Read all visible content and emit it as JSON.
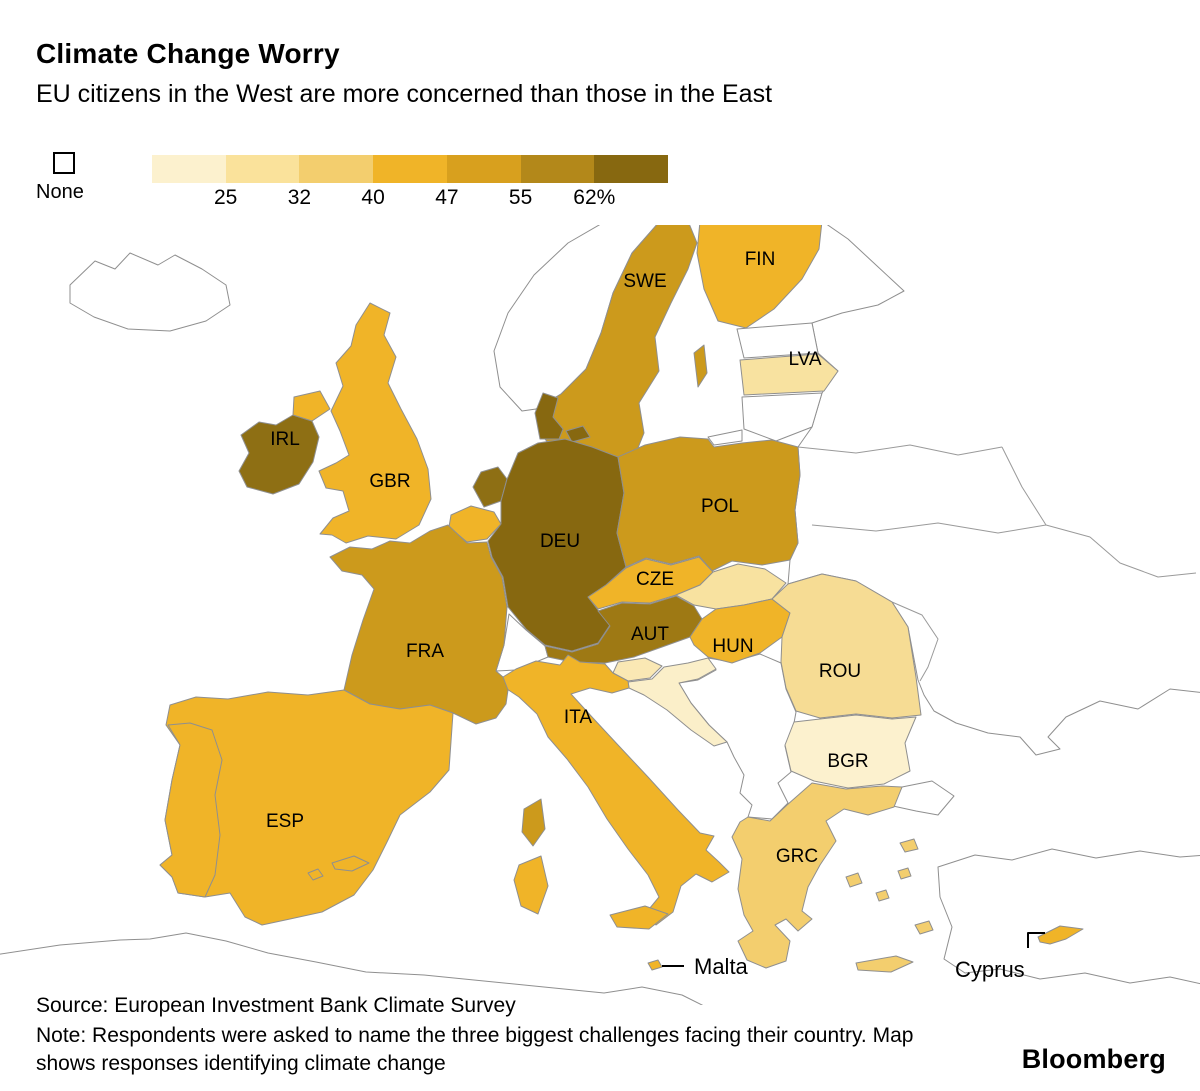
{
  "header": {
    "title": "Climate Change Worry",
    "subtitle": "EU citizens in the West are more concerned than those in the East"
  },
  "legend": {
    "none_label": "None",
    "none_color": "#FFFFFF",
    "ticks": [
      "25",
      "32",
      "40",
      "47",
      "55",
      "62%"
    ],
    "colors": [
      "#FCF1CE",
      "#FAE29B",
      "#F3CE6E",
      "#F0B428",
      "#D8A01E",
      "#B3881A",
      "#876810"
    ]
  },
  "map": {
    "none_color": "#FFFFFF",
    "border_color": "#8F8F8F",
    "countries": {
      "fin": {
        "label": "FIN",
        "color": "#F0B428"
      },
      "swe": {
        "label": "SWE",
        "color": "#CC9A1C"
      },
      "lva": {
        "label": "LVA",
        "color": "#F8E2A0"
      },
      "irl": {
        "label": "IRL",
        "color": "#8E6F14"
      },
      "gbr": {
        "label": "GBR",
        "color": "#F0B428"
      },
      "dnk": {
        "color": "#876810"
      },
      "nld": {
        "color": "#8E6F14"
      },
      "bel": {
        "color": "#F0B428"
      },
      "deu": {
        "label": "DEU",
        "color": "#876810"
      },
      "pol": {
        "label": "POL",
        "color": "#CC9A1C"
      },
      "cze": {
        "label": "CZE",
        "color": "#F0B428"
      },
      "svk": {
        "color": "#F8E2A0"
      },
      "aut": {
        "label": "AUT",
        "color": "#9E7914"
      },
      "hun": {
        "label": "HUN",
        "color": "#F0B428"
      },
      "rou": {
        "label": "ROU",
        "color": "#F6DC94"
      },
      "fra": {
        "label": "FRA",
        "color": "#CC9A1C"
      },
      "ita": {
        "label": "ITA",
        "color": "#F0B428"
      },
      "svn": {
        "color": "#FAE8B4"
      },
      "hrv": {
        "color": "#FBEFC9"
      },
      "esp": {
        "label": "ESP",
        "color": "#F0B428"
      },
      "prt": {
        "color": "#F0B428"
      },
      "bgr": {
        "label": "BGR",
        "color": "#FCF1CE"
      },
      "grc": {
        "label": "GRC",
        "color": "#F3CE6E"
      },
      "mlt": {
        "label": "Malta",
        "color": "#F0B428"
      },
      "cyp": {
        "label": "Cyprus",
        "color": "#F0B428"
      }
    }
  },
  "footer": {
    "source": "Source: European Investment Bank Climate Survey",
    "note": "Note: Respondents were asked to name the three biggest challenges facing their country. Map shows responses identifying climate change",
    "brand": "Bloomberg"
  },
  "chart_data": {
    "type": "heatmap",
    "subtype": "choropleth-map",
    "title": "Climate Change Worry",
    "subtitle": "EU citizens in the West are more concerned than those in the East",
    "unit": "% of respondents naming climate change",
    "legend": {
      "none_label": "None",
      "thresholds": [
        25,
        32,
        40,
        47,
        55,
        62
      ],
      "colors": [
        "#FCF1CE",
        "#FAE29B",
        "#F3CE6E",
        "#F0B428",
        "#D8A01E",
        "#B3881A",
        "#876810"
      ],
      "none_color": "#FFFFFF"
    },
    "countries": [
      {
        "code": "FIN",
        "bucket": "40-47"
      },
      {
        "code": "SWE",
        "bucket": "47-55"
      },
      {
        "code": "EST",
        "bucket": "none"
      },
      {
        "code": "LVA",
        "bucket": "25-32"
      },
      {
        "code": "LTU",
        "bucket": "none"
      },
      {
        "code": "IRL",
        "bucket": ">62"
      },
      {
        "code": "GBR",
        "bucket": "40-47"
      },
      {
        "code": "DNK",
        "bucket": ">62"
      },
      {
        "code": "NLD",
        "bucket": ">62"
      },
      {
        "code": "BEL",
        "bucket": "40-47"
      },
      {
        "code": "DEU",
        "bucket": ">62"
      },
      {
        "code": "POL",
        "bucket": "47-55"
      },
      {
        "code": "CZE",
        "bucket": "40-47"
      },
      {
        "code": "SVK",
        "bucket": "25-32"
      },
      {
        "code": "AUT",
        "bucket": "55-62"
      },
      {
        "code": "HUN",
        "bucket": "40-47"
      },
      {
        "code": "ROU",
        "bucket": "25-32"
      },
      {
        "code": "FRA",
        "bucket": "47-55"
      },
      {
        "code": "ITA",
        "bucket": "40-47"
      },
      {
        "code": "SVN",
        "bucket": "25-32"
      },
      {
        "code": "HRV",
        "bucket": "<25"
      },
      {
        "code": "ESP",
        "bucket": "40-47"
      },
      {
        "code": "PRT",
        "bucket": "40-47"
      },
      {
        "code": "BGR",
        "bucket": "<25"
      },
      {
        "code": "GRC",
        "bucket": "32-40"
      },
      {
        "code": "MLT",
        "bucket": "40-47"
      },
      {
        "code": "CYP",
        "bucket": "40-47"
      }
    ]
  }
}
